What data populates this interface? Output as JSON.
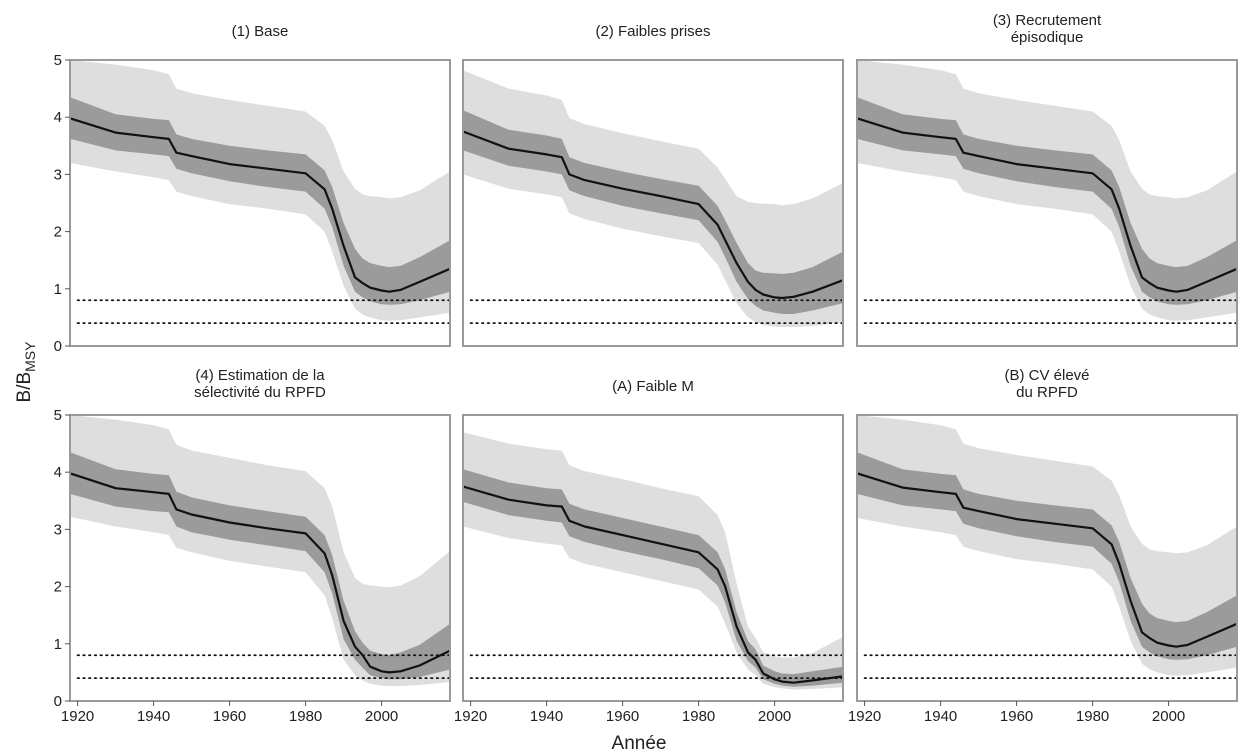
{
  "figure": {
    "xlabel": "Année",
    "ylabel_main": "B/B",
    "ylabel_sub": "MSY"
  },
  "colors": {
    "outer_band": "#dedede",
    "inner_band": "#9b9b9b",
    "median_line": "#111111",
    "frame": "#9a9a9a",
    "reference_lines": "#111111"
  },
  "chart_data": [
    {
      "type": "area",
      "title_lines": [
        "(1) Base"
      ],
      "xlim": [
        1918,
        2018
      ],
      "ylim": [
        0,
        5
      ],
      "xticks": [
        1920,
        1940,
        1960,
        1980,
        2000
      ],
      "yticks": [
        0,
        1,
        2,
        3,
        4,
        5
      ],
      "reference_lines": [
        0.8,
        0.4
      ],
      "x": [
        1918,
        1930,
        1940,
        1944,
        1946,
        1950,
        1960,
        1970,
        1980,
        1985,
        1987,
        1990,
        1993,
        1995,
        1997,
        2000,
        2002,
        2005,
        2010,
        2018
      ],
      "median": [
        3.98,
        3.73,
        3.65,
        3.62,
        3.38,
        3.32,
        3.18,
        3.1,
        3.02,
        2.74,
        2.4,
        1.75,
        1.2,
        1.1,
        1.02,
        0.97,
        0.95,
        0.98,
        1.12,
        1.35
      ],
      "inner_upper": [
        4.35,
        4.05,
        3.97,
        3.95,
        3.7,
        3.62,
        3.5,
        3.42,
        3.35,
        3.07,
        2.78,
        2.15,
        1.7,
        1.53,
        1.45,
        1.4,
        1.38,
        1.4,
        1.55,
        1.85
      ],
      "inner_lower": [
        3.62,
        3.42,
        3.35,
        3.32,
        3.1,
        3.02,
        2.88,
        2.78,
        2.7,
        2.4,
        2.08,
        1.4,
        0.95,
        0.85,
        0.78,
        0.73,
        0.72,
        0.73,
        0.8,
        0.95
      ],
      "outer_upper": [
        5.0,
        4.92,
        4.82,
        4.75,
        4.5,
        4.42,
        4.3,
        4.2,
        4.1,
        3.85,
        3.6,
        3.05,
        2.75,
        2.65,
        2.62,
        2.6,
        2.58,
        2.6,
        2.72,
        3.05
      ],
      "outer_lower": [
        3.2,
        3.05,
        2.95,
        2.9,
        2.7,
        2.62,
        2.48,
        2.4,
        2.3,
        2.0,
        1.65,
        1.05,
        0.65,
        0.55,
        0.5,
        0.45,
        0.44,
        0.45,
        0.5,
        0.58
      ]
    },
    {
      "type": "area",
      "title_lines": [
        "(2) Faibles prises"
      ],
      "xlim": [
        1918,
        2018
      ],
      "ylim": [
        0,
        5
      ],
      "xticks": [
        1920,
        1940,
        1960,
        1980,
        2000
      ],
      "yticks": [
        0,
        1,
        2,
        3,
        4,
        5
      ],
      "reference_lines": [
        0.8,
        0.4
      ],
      "x": [
        1918,
        1930,
        1940,
        1944,
        1946,
        1950,
        1960,
        1970,
        1980,
        1985,
        1987,
        1990,
        1993,
        1995,
        1997,
        2000,
        2002,
        2005,
        2010,
        2018
      ],
      "median": [
        3.75,
        3.45,
        3.35,
        3.3,
        3.0,
        2.9,
        2.75,
        2.62,
        2.48,
        2.12,
        1.85,
        1.45,
        1.12,
        0.98,
        0.9,
        0.85,
        0.84,
        0.86,
        0.95,
        1.15
      ],
      "inner_upper": [
        4.12,
        3.78,
        3.68,
        3.62,
        3.3,
        3.2,
        3.05,
        2.92,
        2.8,
        2.45,
        2.2,
        1.8,
        1.45,
        1.32,
        1.28,
        1.27,
        1.26,
        1.28,
        1.38,
        1.65
      ],
      "inner_lower": [
        3.42,
        3.15,
        3.05,
        3.0,
        2.72,
        2.62,
        2.45,
        2.32,
        2.2,
        1.82,
        1.55,
        1.12,
        0.82,
        0.7,
        0.62,
        0.58,
        0.56,
        0.56,
        0.62,
        0.75
      ],
      "outer_upper": [
        4.82,
        4.5,
        4.38,
        4.3,
        3.98,
        3.88,
        3.72,
        3.58,
        3.45,
        3.12,
        2.92,
        2.62,
        2.52,
        2.5,
        2.49,
        2.48,
        2.46,
        2.48,
        2.58,
        2.85
      ],
      "outer_lower": [
        3.0,
        2.75,
        2.65,
        2.6,
        2.32,
        2.22,
        2.05,
        1.92,
        1.8,
        1.42,
        1.15,
        0.75,
        0.5,
        0.42,
        0.37,
        0.34,
        0.33,
        0.33,
        0.35,
        0.42
      ]
    },
    {
      "type": "area",
      "title_lines": [
        "(3) Recrutement",
        "épisodique"
      ],
      "xlim": [
        1918,
        2018
      ],
      "ylim": [
        0,
        5
      ],
      "xticks": [
        1920,
        1940,
        1960,
        1980,
        2000
      ],
      "yticks": [
        0,
        1,
        2,
        3,
        4,
        5
      ],
      "reference_lines": [
        0.8,
        0.4
      ],
      "x": [
        1918,
        1930,
        1940,
        1944,
        1946,
        1950,
        1960,
        1970,
        1980,
        1985,
        1987,
        1990,
        1993,
        1995,
        1997,
        2000,
        2002,
        2005,
        2010,
        2018
      ],
      "median": [
        3.98,
        3.73,
        3.65,
        3.62,
        3.38,
        3.32,
        3.18,
        3.1,
        3.02,
        2.74,
        2.4,
        1.75,
        1.2,
        1.1,
        1.02,
        0.97,
        0.95,
        0.98,
        1.12,
        1.35
      ],
      "inner_upper": [
        4.35,
        4.05,
        3.97,
        3.95,
        3.7,
        3.62,
        3.5,
        3.42,
        3.35,
        3.07,
        2.78,
        2.15,
        1.7,
        1.53,
        1.45,
        1.4,
        1.38,
        1.4,
        1.55,
        1.85
      ],
      "inner_lower": [
        3.62,
        3.42,
        3.35,
        3.32,
        3.1,
        3.02,
        2.88,
        2.78,
        2.7,
        2.4,
        2.08,
        1.4,
        0.95,
        0.85,
        0.78,
        0.73,
        0.72,
        0.73,
        0.8,
        0.95
      ],
      "outer_upper": [
        5.0,
        4.92,
        4.82,
        4.75,
        4.5,
        4.42,
        4.3,
        4.2,
        4.1,
        3.85,
        3.6,
        3.05,
        2.75,
        2.65,
        2.62,
        2.6,
        2.58,
        2.6,
        2.72,
        3.05
      ],
      "outer_lower": [
        3.2,
        3.05,
        2.95,
        2.9,
        2.7,
        2.62,
        2.48,
        2.4,
        2.3,
        2.0,
        1.65,
        1.05,
        0.65,
        0.55,
        0.5,
        0.45,
        0.44,
        0.45,
        0.5,
        0.58
      ]
    },
    {
      "type": "area",
      "title_lines": [
        "(4) Estimation de la",
        "sélectivité du RPFD"
      ],
      "xlim": [
        1918,
        2018
      ],
      "ylim": [
        0,
        5
      ],
      "xticks": [
        1920,
        1940,
        1960,
        1980,
        2000
      ],
      "yticks": [
        0,
        1,
        2,
        3,
        4,
        5
      ],
      "reference_lines": [
        0.8,
        0.4
      ],
      "x": [
        1918,
        1930,
        1940,
        1944,
        1946,
        1950,
        1960,
        1970,
        1980,
        1985,
        1987,
        1990,
        1993,
        1995,
        1997,
        2000,
        2002,
        2005,
        2010,
        2018
      ],
      "median": [
        3.98,
        3.72,
        3.65,
        3.62,
        3.35,
        3.26,
        3.12,
        3.02,
        2.93,
        2.58,
        2.2,
        1.4,
        0.95,
        0.8,
        0.6,
        0.52,
        0.5,
        0.52,
        0.62,
        0.88
      ],
      "inner_upper": [
        4.35,
        4.05,
        3.97,
        3.95,
        3.66,
        3.56,
        3.42,
        3.32,
        3.22,
        2.9,
        2.55,
        1.75,
        1.22,
        1.02,
        0.88,
        0.82,
        0.8,
        0.85,
        0.98,
        1.35
      ],
      "inner_lower": [
        3.62,
        3.4,
        3.32,
        3.3,
        3.05,
        2.95,
        2.82,
        2.72,
        2.62,
        2.25,
        1.88,
        1.08,
        0.72,
        0.58,
        0.45,
        0.4,
        0.38,
        0.38,
        0.42,
        0.55
      ],
      "outer_upper": [
        5.0,
        4.92,
        4.82,
        4.75,
        4.48,
        4.38,
        4.25,
        4.12,
        4.02,
        3.72,
        3.4,
        2.6,
        2.15,
        2.05,
        2.02,
        2.0,
        1.99,
        2.02,
        2.18,
        2.62
      ],
      "outer_lower": [
        3.22,
        3.05,
        2.95,
        2.9,
        2.68,
        2.6,
        2.45,
        2.35,
        2.25,
        1.85,
        1.45,
        0.72,
        0.45,
        0.36,
        0.3,
        0.27,
        0.26,
        0.26,
        0.28,
        0.33
      ]
    },
    {
      "type": "area",
      "title_lines": [
        "(A) Faible M"
      ],
      "xlim": [
        1918,
        2018
      ],
      "ylim": [
        0,
        5
      ],
      "xticks": [
        1920,
        1940,
        1960,
        1980,
        2000
      ],
      "yticks": [
        0,
        1,
        2,
        3,
        4,
        5
      ],
      "reference_lines": [
        0.8,
        0.4
      ],
      "x": [
        1918,
        1930,
        1940,
        1944,
        1946,
        1950,
        1960,
        1970,
        1980,
        1985,
        1987,
        1990,
        1993,
        1995,
        1997,
        2000,
        2002,
        2005,
        2010,
        2018
      ],
      "median": [
        3.75,
        3.52,
        3.42,
        3.4,
        3.15,
        3.05,
        2.9,
        2.75,
        2.6,
        2.3,
        2.0,
        1.3,
        0.85,
        0.72,
        0.48,
        0.38,
        0.34,
        0.32,
        0.36,
        0.43
      ],
      "inner_upper": [
        4.05,
        3.82,
        3.72,
        3.7,
        3.45,
        3.35,
        3.2,
        3.05,
        2.9,
        2.6,
        2.3,
        1.55,
        1.05,
        0.9,
        0.62,
        0.52,
        0.48,
        0.47,
        0.52,
        0.6
      ],
      "inner_lower": [
        3.48,
        3.25,
        3.15,
        3.12,
        2.88,
        2.78,
        2.62,
        2.48,
        2.32,
        2.02,
        1.72,
        1.05,
        0.7,
        0.58,
        0.38,
        0.3,
        0.27,
        0.25,
        0.27,
        0.32
      ],
      "outer_upper": [
        4.7,
        4.5,
        4.4,
        4.38,
        4.12,
        4.02,
        3.88,
        3.72,
        3.58,
        3.25,
        2.95,
        2.05,
        1.3,
        1.1,
        0.85,
        0.78,
        0.76,
        0.76,
        0.84,
        1.12
      ],
      "outer_lower": [
        3.05,
        2.85,
        2.75,
        2.72,
        2.5,
        2.4,
        2.25,
        2.1,
        1.95,
        1.65,
        1.35,
        0.85,
        0.55,
        0.45,
        0.3,
        0.24,
        0.22,
        0.2,
        0.21,
        0.24
      ]
    },
    {
      "type": "area",
      "title_lines": [
        "(B) CV élevé",
        "du RPFD"
      ],
      "xlim": [
        1918,
        2018
      ],
      "ylim": [
        0,
        5
      ],
      "xticks": [
        1920,
        1940,
        1960,
        1980,
        2000
      ],
      "yticks": [
        0,
        1,
        2,
        3,
        4,
        5
      ],
      "reference_lines": [
        0.8,
        0.4
      ],
      "x": [
        1918,
        1930,
        1940,
        1944,
        1946,
        1950,
        1960,
        1970,
        1980,
        1985,
        1987,
        1990,
        1993,
        1995,
        1997,
        2000,
        2002,
        2005,
        2010,
        2018
      ],
      "median": [
        3.98,
        3.73,
        3.65,
        3.62,
        3.38,
        3.32,
        3.18,
        3.1,
        3.02,
        2.74,
        2.4,
        1.75,
        1.2,
        1.1,
        1.02,
        0.97,
        0.95,
        0.98,
        1.12,
        1.35
      ],
      "inner_upper": [
        4.35,
        4.05,
        3.97,
        3.95,
        3.7,
        3.62,
        3.5,
        3.42,
        3.35,
        3.07,
        2.78,
        2.15,
        1.7,
        1.53,
        1.45,
        1.4,
        1.38,
        1.4,
        1.55,
        1.85
      ],
      "inner_lower": [
        3.62,
        3.42,
        3.35,
        3.32,
        3.1,
        3.02,
        2.88,
        2.78,
        2.7,
        2.4,
        2.08,
        1.4,
        0.95,
        0.85,
        0.78,
        0.73,
        0.72,
        0.73,
        0.8,
        0.95
      ],
      "outer_upper": [
        5.0,
        4.92,
        4.82,
        4.75,
        4.5,
        4.42,
        4.3,
        4.2,
        4.1,
        3.85,
        3.6,
        3.05,
        2.75,
        2.65,
        2.62,
        2.6,
        2.58,
        2.6,
        2.72,
        3.05
      ],
      "outer_lower": [
        3.2,
        3.05,
        2.95,
        2.9,
        2.7,
        2.62,
        2.48,
        2.4,
        2.3,
        2.0,
        1.65,
        1.05,
        0.65,
        0.55,
        0.5,
        0.45,
        0.44,
        0.45,
        0.5,
        0.58
      ]
    }
  ]
}
